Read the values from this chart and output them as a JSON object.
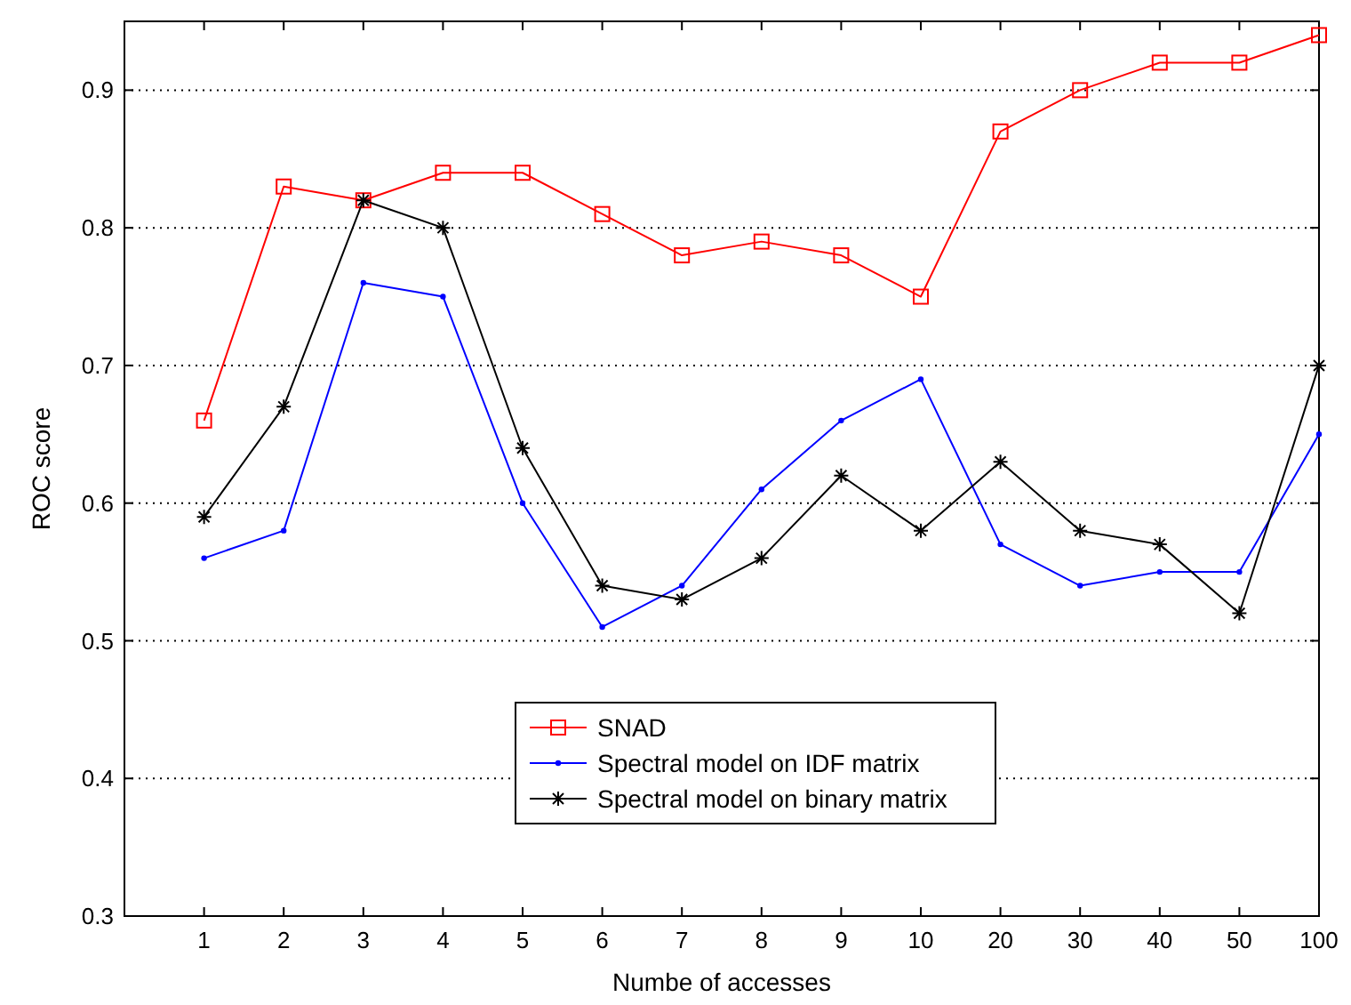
{
  "chart_data": {
    "type": "line",
    "xlabel": "Numbe of accesses",
    "ylabel": "ROC score",
    "categories": [
      "1",
      "2",
      "3",
      "4",
      "5",
      "6",
      "7",
      "8",
      "9",
      "10",
      "20",
      "30",
      "40",
      "50",
      "100"
    ],
    "series": [
      {
        "name": "SNAD",
        "color": "#ff0000",
        "marker": "square",
        "values": [
          0.66,
          0.83,
          0.82,
          0.84,
          0.84,
          0.81,
          0.78,
          0.79,
          0.78,
          0.75,
          0.87,
          0.9,
          0.92,
          0.92,
          0.94
        ]
      },
      {
        "name": "Spectral model on IDF matrix",
        "color": "#0000ff",
        "marker": "circle",
        "values": [
          0.56,
          0.58,
          0.76,
          0.75,
          0.6,
          0.51,
          0.54,
          0.61,
          0.66,
          0.69,
          0.57,
          0.54,
          0.55,
          0.55,
          0.65
        ]
      },
      {
        "name": "Spectral model on binary matrix",
        "color": "#000000",
        "marker": "cross",
        "values": [
          0.59,
          0.67,
          0.82,
          0.8,
          0.64,
          0.54,
          0.53,
          0.56,
          0.62,
          0.58,
          0.63,
          0.58,
          0.57,
          0.52,
          0.7
        ]
      }
    ],
    "ylim": [
      0.3,
      0.95
    ],
    "yticks": [
      0.3,
      0.4,
      0.5,
      0.6,
      0.7,
      0.8,
      0.9
    ],
    "grid": "y",
    "legend": "bottom",
    "line_style": "solid"
  }
}
